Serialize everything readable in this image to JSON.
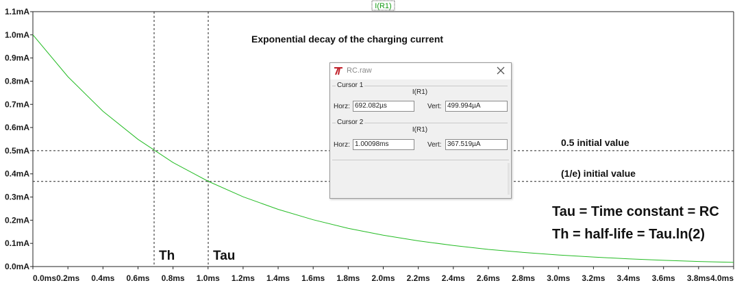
{
  "trace_label": "I(R1)",
  "colors": {
    "trace": "#22bb22",
    "grid": "#222222",
    "trace_label": "#119911"
  },
  "chart_data": {
    "type": "line",
    "xlim": [
      0,
      4.0
    ],
    "ylim": [
      0,
      1.1
    ],
    "x_ticks": [
      "0.0ms",
      "0.2ms",
      "0.4ms",
      "0.6ms",
      "0.8ms",
      "1.0ms",
      "1.2ms",
      "1.4ms",
      "1.6ms",
      "1.8ms",
      "2.0ms",
      "2.2ms",
      "2.4ms",
      "2.6ms",
      "2.8ms",
      "3.0ms",
      "3.2ms",
      "3.4ms",
      "3.6ms",
      "3.8ms",
      "4.0ms"
    ],
    "y_ticks": [
      "0.0mA",
      "0.1mA",
      "0.2mA",
      "0.3mA",
      "0.4mA",
      "0.5mA",
      "0.6mA",
      "0.7mA",
      "0.8mA",
      "0.9mA",
      "1.0mA",
      "1.1mA"
    ],
    "series": [
      {
        "name": "I(R1)",
        "x": [
          0,
          0.2,
          0.4,
          0.6,
          0.8,
          1.0,
          1.2,
          1.4,
          1.6,
          1.8,
          2.0,
          2.2,
          2.4,
          2.6,
          2.8,
          3.0,
          3.2,
          3.4,
          3.6,
          3.8,
          4.0
        ],
        "y": [
          1.0,
          0.819,
          0.67,
          0.549,
          0.449,
          0.368,
          0.301,
          0.247,
          0.202,
          0.165,
          0.135,
          0.111,
          0.091,
          0.074,
          0.061,
          0.05,
          0.041,
          0.033,
          0.027,
          0.022,
          0.018
        ]
      }
    ],
    "cursor_lines": {
      "vertical_x": [
        0.692,
        1.001
      ],
      "horizontal_y": [
        0.5,
        0.3675
      ]
    },
    "grid": false
  },
  "annotations": {
    "title": "Exponential decay of the charging current",
    "half_value": "0.5 initial value",
    "inv_e_value": "(1/e) initial value",
    "tau_def": "Tau = Time constant = RC",
    "th_def": "Th = half-life = Tau.ln(2)",
    "th_label": "Th",
    "tau_label": "Tau"
  },
  "dialog": {
    "title": "RC.raw",
    "cursor1": {
      "label": "Cursor 1",
      "trace": "I(R1)",
      "horz_label": "Horz:",
      "horz": "692.082µs",
      "vert_label": "Vert:",
      "vert": "499.994µA"
    },
    "cursor2": {
      "label": "Cursor 2",
      "trace": "I(R1)",
      "horz_label": "Horz:",
      "horz": "1.00098ms",
      "vert_label": "Vert:",
      "vert": "367.519µA"
    }
  }
}
